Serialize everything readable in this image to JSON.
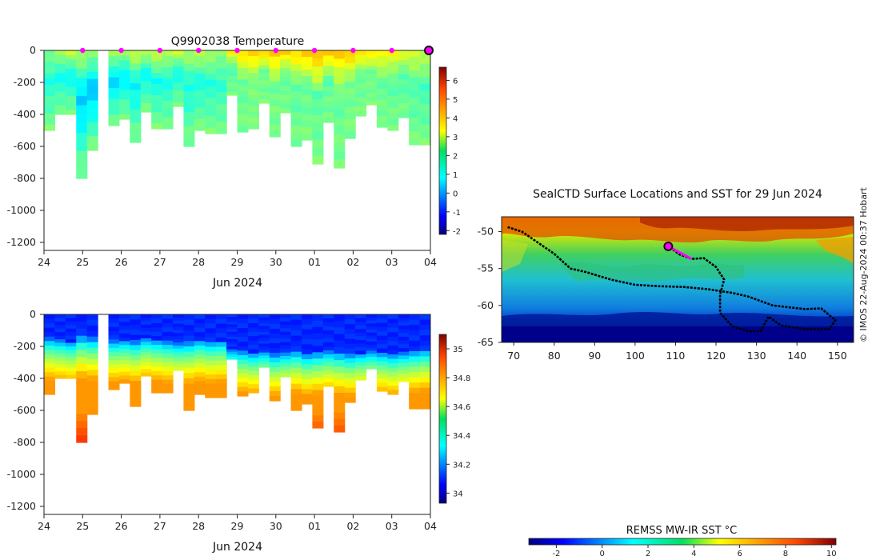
{
  "chart_data": [
    {
      "type": "heatmap",
      "title": "Q9902038  Temperature",
      "xlabel": "Jun 2024",
      "x_ticks": [
        "24",
        "25",
        "26",
        "27",
        "28",
        "29",
        "30",
        "01",
        "02",
        "03",
        "04"
      ],
      "y_ticks": [
        0,
        -200,
        -400,
        -600,
        -800,
        -1000,
        -1200
      ],
      "ylim": [
        -1250,
        0
      ],
      "colorbar_ticks": [
        6,
        5,
        4,
        3,
        2,
        1,
        0,
        -1,
        -2
      ],
      "colorbar_range": [
        -2.2,
        6.7
      ],
      "profile_max_depth_m": [
        -500,
        -400,
        -400,
        -800,
        -625,
        -525,
        -470,
        -430,
        -575,
        -385,
        -490,
        -490,
        -350,
        -600,
        -500,
        -520,
        -520,
        -280,
        -510,
        -490,
        -330,
        -540,
        -390,
        -600,
        -560,
        -710,
        -450,
        -735,
        -550,
        -410,
        -340,
        -480,
        -500,
        -420,
        -590,
        -590
      ],
      "surface_temp_c": [
        2.2,
        2.6,
        2.8,
        2.5,
        2.3,
        2.9,
        2.6,
        2.4,
        2.8,
        2.6,
        2.9,
        2.7,
        2.9,
        2.5,
        2.7,
        2.6,
        2.4,
        3.4,
        3.6,
        3.7,
        3.8,
        3.9,
        3.7,
        3.6,
        3.8,
        4.0,
        3.9,
        3.7,
        3.8,
        3.5,
        3.6,
        3.4,
        3.3,
        3.1,
        2.9,
        2.8
      ],
      "min_temp_c": [
        1.4,
        1.2,
        1.1,
        0.6,
        0.5,
        0.6,
        0.7,
        0.9,
        1.0,
        1.1,
        1.2,
        1.3,
        1.2,
        1.3,
        1.3,
        1.4,
        1.5,
        1.8,
        2.0,
        2.2,
        2.1,
        2.1,
        2.0,
        1.9,
        2.0,
        1.9,
        1.9,
        2.0,
        2.1,
        2.0,
        2.1,
        2.0,
        1.9,
        1.8,
        1.8,
        1.7
      ],
      "surfacing_markers_x": [
        "25",
        "26",
        "27",
        "28",
        "29",
        "30",
        "01",
        "02",
        "03"
      ]
    },
    {
      "type": "heatmap",
      "xlabel": "Jun 2024",
      "x_ticks": [
        "24",
        "25",
        "26",
        "27",
        "28",
        "29",
        "30",
        "01",
        "02",
        "03",
        "04"
      ],
      "y_ticks": [
        0,
        -200,
        -400,
        -600,
        -800,
        -1000,
        -1200
      ],
      "ylim": [
        -1250,
        0
      ],
      "colorbar_ticks": [
        "35",
        "34.8",
        "34.6",
        "34.4",
        "34.2",
        "34"
      ],
      "colorbar_range": [
        33.93,
        35.1
      ],
      "mixed_layer_depth_m": [
        -150,
        -160,
        -170,
        -140,
        -150,
        -170,
        -165,
        -160,
        -170,
        -150,
        -160,
        -170,
        -180,
        -175,
        -160,
        -170,
        -165,
        -220,
        -230,
        -240,
        -230,
        -250,
        -240,
        -230,
        -250,
        -240,
        -230,
        -240,
        -250,
        -240,
        -230,
        -240,
        -250,
        -240,
        -230,
        -220
      ]
    },
    {
      "type": "map",
      "title": "SealCTD Surface Locations and SST for 29 Jun 2024",
      "x_ticks": [
        70,
        80,
        90,
        100,
        110,
        120,
        130,
        140,
        150
      ],
      "y_ticks": [
        -50,
        -55,
        -60,
        -65
      ],
      "lon_range": [
        67,
        154
      ],
      "lat_range": [
        -65,
        -48
      ],
      "track_lonlat": [
        [
          68.5,
          -49.4
        ],
        [
          72,
          -50
        ],
        [
          76,
          -51.5
        ],
        [
          80,
          -53
        ],
        [
          84,
          -55
        ],
        [
          88,
          -55.5
        ],
        [
          94,
          -56.5
        ],
        [
          100,
          -57.2
        ],
        [
          106,
          -57.4
        ],
        [
          112,
          -57.5
        ],
        [
          118,
          -57.8
        ],
        [
          124,
          -58.3
        ],
        [
          128,
          -58.8
        ],
        [
          134,
          -60
        ],
        [
          142,
          -60.5
        ],
        [
          146,
          -60.4
        ],
        [
          149.5,
          -62
        ],
        [
          148,
          -63.2
        ],
        [
          142,
          -63.2
        ],
        [
          136,
          -62.7
        ],
        [
          133,
          -61.5
        ],
        [
          131,
          -63.5
        ],
        [
          128,
          -63.5
        ],
        [
          124,
          -62.8
        ],
        [
          121,
          -61
        ],
        [
          121,
          -58.5
        ],
        [
          122,
          -56.5
        ],
        [
          120,
          -54.8
        ],
        [
          117,
          -53.6
        ],
        [
          114,
          -53.7
        ],
        [
          111,
          -53.1
        ],
        [
          108.2,
          -52.0
        ]
      ],
      "current_position_lonlat": [
        108.2,
        -52.0
      ],
      "colorbar_label": "REMSS MW-IR SST °C",
      "colorbar_ticks": [
        -2,
        0,
        2,
        4,
        6,
        8,
        10
      ],
      "colorbar_range": [
        -3.2,
        10.2
      ]
    }
  ],
  "footer": {
    "credit": "© IMOS 22-Aug-2024 00:37 Hobart"
  }
}
